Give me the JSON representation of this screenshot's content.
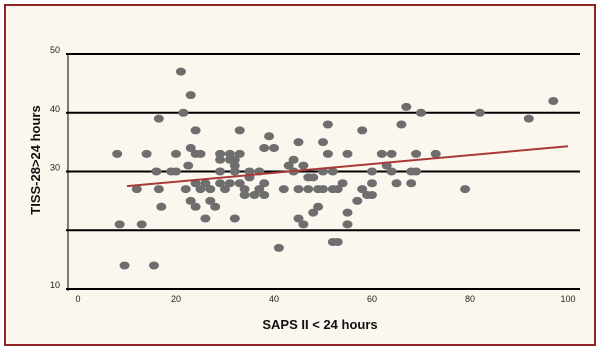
{
  "chart_data": {
    "type": "scatter",
    "title": "",
    "xlabel": "SAPS II < 24 hours",
    "ylabel": "TISS-28>24 hours",
    "xlim": [
      0,
      100
    ],
    "ylim": [
      10,
      50
    ],
    "x_ticks": [
      0,
      20,
      40,
      60,
      80,
      100
    ],
    "y_ticks": [
      10,
      30,
      40,
      50
    ],
    "grid_y": [
      10,
      20,
      30,
      40,
      50
    ],
    "marker_color": "#6e6e6e",
    "trendline": {
      "x": [
        10,
        100
      ],
      "y": [
        27.5,
        34.3
      ],
      "color": "#a83a3a"
    },
    "points": [
      {
        "x": 8,
        "y": 33
      },
      {
        "x": 8.5,
        "y": 21
      },
      {
        "x": 9.5,
        "y": 14
      },
      {
        "x": 12,
        "y": 27
      },
      {
        "x": 13,
        "y": 21
      },
      {
        "x": 14,
        "y": 33
      },
      {
        "x": 15.5,
        "y": 14
      },
      {
        "x": 16,
        "y": 30
      },
      {
        "x": 16.5,
        "y": 27
      },
      {
        "x": 16.5,
        "y": 39
      },
      {
        "x": 17,
        "y": 24
      },
      {
        "x": 19,
        "y": 30
      },
      {
        "x": 20,
        "y": 33
      },
      {
        "x": 20,
        "y": 30
      },
      {
        "x": 21,
        "y": 47
      },
      {
        "x": 21.5,
        "y": 40
      },
      {
        "x": 22,
        "y": 27
      },
      {
        "x": 22.5,
        "y": 31
      },
      {
        "x": 23,
        "y": 43
      },
      {
        "x": 23,
        "y": 34
      },
      {
        "x": 23,
        "y": 25
      },
      {
        "x": 24,
        "y": 37
      },
      {
        "x": 24,
        "y": 33
      },
      {
        "x": 24,
        "y": 28
      },
      {
        "x": 24,
        "y": 24
      },
      {
        "x": 25,
        "y": 33
      },
      {
        "x": 25,
        "y": 27
      },
      {
        "x": 26,
        "y": 22
      },
      {
        "x": 26,
        "y": 28
      },
      {
        "x": 27,
        "y": 25
      },
      {
        "x": 27,
        "y": 27
      },
      {
        "x": 28,
        "y": 24
      },
      {
        "x": 29,
        "y": 30
      },
      {
        "x": 29,
        "y": 33
      },
      {
        "x": 29,
        "y": 32
      },
      {
        "x": 29,
        "y": 28
      },
      {
        "x": 30,
        "y": 27
      },
      {
        "x": 31,
        "y": 33
      },
      {
        "x": 31,
        "y": 32
      },
      {
        "x": 31,
        "y": 28
      },
      {
        "x": 32,
        "y": 31
      },
      {
        "x": 32,
        "y": 32
      },
      {
        "x": 32,
        "y": 30
      },
      {
        "x": 32,
        "y": 22
      },
      {
        "x": 33,
        "y": 37
      },
      {
        "x": 33,
        "y": 28
      },
      {
        "x": 33,
        "y": 33
      },
      {
        "x": 34,
        "y": 27
      },
      {
        "x": 34,
        "y": 26
      },
      {
        "x": 35,
        "y": 29
      },
      {
        "x": 35,
        "y": 30
      },
      {
        "x": 36,
        "y": 26
      },
      {
        "x": 37,
        "y": 30
      },
      {
        "x": 37,
        "y": 27
      },
      {
        "x": 38,
        "y": 28
      },
      {
        "x": 38,
        "y": 26
      },
      {
        "x": 38,
        "y": 34
      },
      {
        "x": 39,
        "y": 36
      },
      {
        "x": 40,
        "y": 34
      },
      {
        "x": 41,
        "y": 17
      },
      {
        "x": 42,
        "y": 27
      },
      {
        "x": 43,
        "y": 31
      },
      {
        "x": 44,
        "y": 32
      },
      {
        "x": 44,
        "y": 30
      },
      {
        "x": 45,
        "y": 35
      },
      {
        "x": 45,
        "y": 27
      },
      {
        "x": 45,
        "y": 22
      },
      {
        "x": 46,
        "y": 31
      },
      {
        "x": 46,
        "y": 21
      },
      {
        "x": 47,
        "y": 29
      },
      {
        "x": 47,
        "y": 27
      },
      {
        "x": 48,
        "y": 29
      },
      {
        "x": 48,
        "y": 23
      },
      {
        "x": 49,
        "y": 27
      },
      {
        "x": 49,
        "y": 24
      },
      {
        "x": 50,
        "y": 35
      },
      {
        "x": 50,
        "y": 30
      },
      {
        "x": 50,
        "y": 27
      },
      {
        "x": 51,
        "y": 38
      },
      {
        "x": 51,
        "y": 33
      },
      {
        "x": 52,
        "y": 27
      },
      {
        "x": 52,
        "y": 30
      },
      {
        "x": 52,
        "y": 18
      },
      {
        "x": 53,
        "y": 18
      },
      {
        "x": 53,
        "y": 27
      },
      {
        "x": 54,
        "y": 28
      },
      {
        "x": 55,
        "y": 33
      },
      {
        "x": 55,
        "y": 21
      },
      {
        "x": 55,
        "y": 23
      },
      {
        "x": 57,
        "y": 25
      },
      {
        "x": 58,
        "y": 37
      },
      {
        "x": 58,
        "y": 27
      },
      {
        "x": 59,
        "y": 26
      },
      {
        "x": 60,
        "y": 30
      },
      {
        "x": 60,
        "y": 28
      },
      {
        "x": 60,
        "y": 26
      },
      {
        "x": 62,
        "y": 33
      },
      {
        "x": 63,
        "y": 31
      },
      {
        "x": 64,
        "y": 33
      },
      {
        "x": 64,
        "y": 30
      },
      {
        "x": 65,
        "y": 28
      },
      {
        "x": 66,
        "y": 38
      },
      {
        "x": 67,
        "y": 41
      },
      {
        "x": 68,
        "y": 30
      },
      {
        "x": 68,
        "y": 28
      },
      {
        "x": 69,
        "y": 33
      },
      {
        "x": 69,
        "y": 30
      },
      {
        "x": 70,
        "y": 40
      },
      {
        "x": 73,
        "y": 33
      },
      {
        "x": 79,
        "y": 27
      },
      {
        "x": 82,
        "y": 40
      },
      {
        "x": 92,
        "y": 39
      },
      {
        "x": 97,
        "y": 42
      }
    ]
  }
}
